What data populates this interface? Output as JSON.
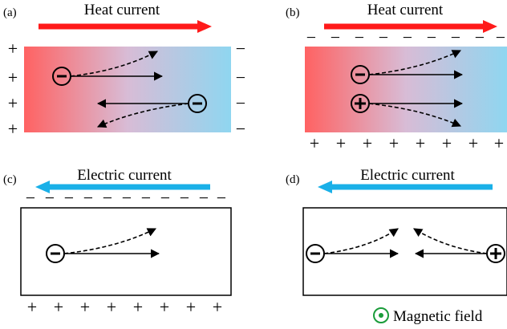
{
  "panels": {
    "a": {
      "letter": "(a)",
      "title": "Heat current"
    },
    "b": {
      "letter": "(b)",
      "title": "Heat current"
    },
    "c": {
      "letter": "(c)",
      "title": "Electric current"
    },
    "d": {
      "letter": "(d)",
      "title": "Electric current"
    }
  },
  "charges": {
    "minus": "−",
    "plus": "+"
  },
  "legend": {
    "label": "Magnetic field"
  },
  "colors": {
    "heat_arrow": "#ff1a1a",
    "electric_arrow": "#1ab0e8",
    "hot": "#ff6060",
    "cold": "#8fd6f0"
  }
}
